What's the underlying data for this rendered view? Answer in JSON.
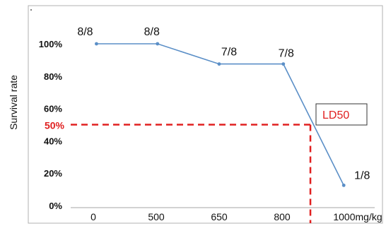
{
  "chart_data": {
    "type": "line",
    "title": "",
    "ylabel": "Survival rate",
    "xlabel": "",
    "categories": [
      "0",
      "500",
      "650",
      "800",
      "1000mg/kg"
    ],
    "x_positions": [
      0,
      1,
      2,
      3,
      4
    ],
    "y_ticks": [
      0,
      20,
      40,
      60,
      80,
      100
    ],
    "y_tick_labels": [
      "0%",
      "20%",
      "40%",
      "60%",
      "80%",
      "100%"
    ],
    "ylim": [
      0,
      100
    ],
    "series": [
      {
        "color": "#5b8fc7",
        "points": [
          {
            "x": 0.05,
            "y": 100,
            "label": "8/8"
          },
          {
            "x": 1.02,
            "y": 100,
            "label": "8/8"
          },
          {
            "x": 2.0,
            "y": 87.5,
            "label": "7/8"
          },
          {
            "x": 3.02,
            "y": 87.5,
            "label": "7/8"
          },
          {
            "x": 3.98,
            "y": 12.5,
            "label": "1/8"
          }
        ]
      }
    ],
    "reference": {
      "y_value": 50,
      "y_label": "50%",
      "x_value": 3.45,
      "annotation": "LD50",
      "color": "#e02020"
    },
    "grid": false,
    "legend": "none"
  }
}
